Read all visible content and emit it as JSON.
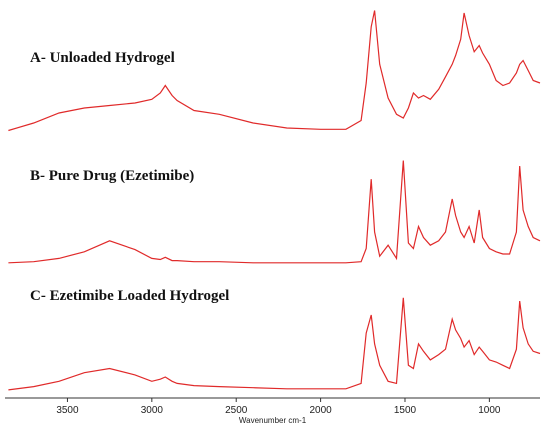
{
  "chart_data": [
    {
      "type": "line",
      "title": "A- Unloaded Hydrogel",
      "color": "#e02a2a",
      "xlim": [
        3870,
        700
      ],
      "ylim": [
        0,
        100
      ],
      "x": [
        3850,
        3700,
        3550,
        3400,
        3250,
        3100,
        3000,
        2950,
        2920,
        2880,
        2850,
        2750,
        2600,
        2400,
        2200,
        2000,
        1850,
        1760,
        1730,
        1700,
        1680,
        1650,
        1600,
        1550,
        1510,
        1480,
        1450,
        1420,
        1390,
        1350,
        1300,
        1260,
        1220,
        1200,
        1170,
        1150,
        1120,
        1090,
        1060,
        1040,
        1000,
        960,
        920,
        880,
        840,
        820,
        800,
        770,
        740,
        700
      ],
      "values": [
        2,
        8,
        16,
        20,
        22,
        24,
        27,
        32,
        38,
        30,
        26,
        18,
        15,
        8,
        4,
        3,
        3,
        10,
        40,
        85,
        98,
        55,
        28,
        15,
        12,
        20,
        32,
        28,
        30,
        27,
        35,
        45,
        55,
        62,
        75,
        96,
        78,
        65,
        70,
        64,
        55,
        42,
        38,
        40,
        48,
        55,
        58,
        50,
        42,
        40
      ]
    },
    {
      "type": "line",
      "title": "B- Pure Drug (Ezetimibe)",
      "color": "#e02a2a",
      "xlim": [
        3870,
        700
      ],
      "ylim": [
        0,
        100
      ],
      "x": [
        3850,
        3700,
        3550,
        3400,
        3250,
        3100,
        3000,
        2950,
        2920,
        2880,
        2850,
        2750,
        2600,
        2400,
        2200,
        2000,
        1850,
        1760,
        1730,
        1700,
        1680,
        1650,
        1600,
        1550,
        1510,
        1480,
        1450,
        1420,
        1390,
        1350,
        1300,
        1260,
        1220,
        1200,
        1170,
        1150,
        1120,
        1090,
        1060,
        1040,
        1000,
        960,
        920,
        880,
        840,
        820,
        800,
        770,
        740,
        700
      ],
      "values": [
        2,
        3,
        6,
        12,
        22,
        14,
        6,
        5,
        7,
        4,
        4,
        3,
        3,
        2,
        2,
        2,
        2,
        3,
        15,
        78,
        30,
        8,
        18,
        6,
        95,
        20,
        15,
        35,
        25,
        18,
        22,
        30,
        60,
        45,
        30,
        25,
        35,
        20,
        50,
        25,
        15,
        12,
        10,
        10,
        30,
        90,
        50,
        35,
        25,
        22
      ]
    },
    {
      "type": "line",
      "title": "C- Ezetimibe Loaded Hydrogel",
      "color": "#e02a2a",
      "xlim": [
        3870,
        700
      ],
      "ylim": [
        0,
        100
      ],
      "x": [
        3850,
        3700,
        3550,
        3400,
        3250,
        3100,
        3000,
        2950,
        2920,
        2880,
        2850,
        2750,
        2600,
        2400,
        2200,
        2000,
        1850,
        1760,
        1730,
        1700,
        1680,
        1650,
        1600,
        1550,
        1510,
        1480,
        1450,
        1420,
        1390,
        1350,
        1300,
        1260,
        1220,
        1200,
        1170,
        1150,
        1120,
        1090,
        1060,
        1040,
        1000,
        960,
        920,
        880,
        840,
        820,
        800,
        770,
        740,
        700
      ],
      "values": [
        2,
        5,
        10,
        18,
        22,
        16,
        10,
        12,
        14,
        10,
        8,
        6,
        5,
        4,
        3,
        3,
        3,
        8,
        55,
        72,
        45,
        25,
        10,
        8,
        88,
        25,
        22,
        45,
        38,
        30,
        35,
        40,
        68,
        58,
        50,
        42,
        48,
        35,
        42,
        38,
        30,
        28,
        25,
        22,
        40,
        85,
        60,
        45,
        38,
        36
      ],
      "xticks": [
        3500,
        3000,
        2500,
        2000,
        1500,
        1000
      ],
      "xlabel": "Wavenumber cm-1"
    }
  ]
}
